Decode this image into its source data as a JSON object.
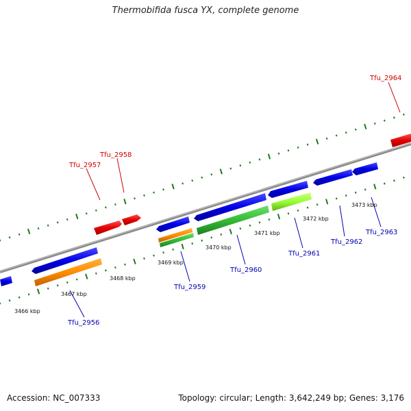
{
  "title": "Thermobifida fusca YX, complete genome",
  "accession": "Accession: NC_007333",
  "summary": "Topology: circular; Length: 3,642,249 bp; Genes: 3,176",
  "colors": {
    "backbone": "#8c8c8c",
    "tick": "#1a7a1a",
    "cds_blue": "#0000e0",
    "cds_red": "#e00000",
    "cds_orange": "#ff8c00",
    "cds_green": "#33bb33",
    "cds_lime": "#99ff33",
    "label_forward": "#d00000",
    "label_reverse": "#0000b0"
  },
  "kbp_labels": [
    "3466 kbp",
    "3467 kbp",
    "3468 kbp",
    "3469 kbp",
    "3470 kbp",
    "3471 kbp",
    "3472 kbp",
    "3473 kbp"
  ],
  "gene_labels": {
    "forward": [
      "Tfu_2957",
      "Tfu_2958",
      "Tfu_2964"
    ],
    "reverse": [
      "Tfu_2956",
      "Tfu_2959",
      "Tfu_2960",
      "Tfu_2961",
      "Tfu_2962",
      "Tfu_2963"
    ]
  }
}
